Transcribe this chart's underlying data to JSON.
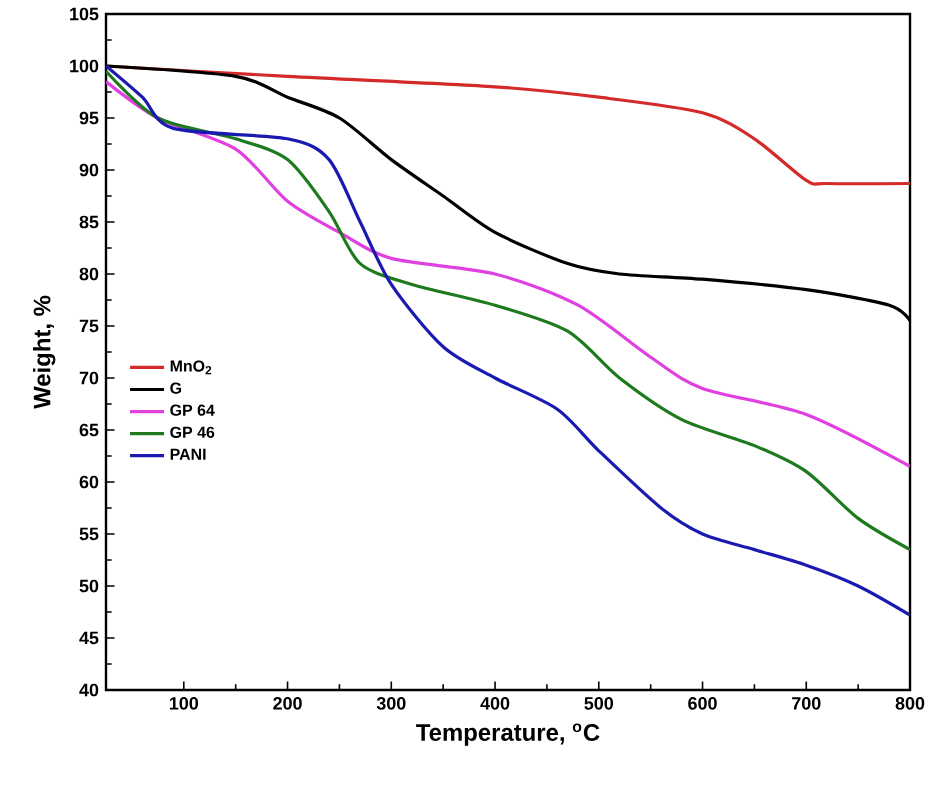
{
  "chart_data": {
    "type": "line",
    "xlabel": "Temperature, $^{o}$C",
    "ylabel": "Weight, %",
    "xlim": [
      25,
      800
    ],
    "xticks": [
      100,
      200,
      300,
      400,
      500,
      600,
      700,
      800
    ],
    "ylim": [
      40,
      105
    ],
    "yticks": [
      40,
      45,
      50,
      55,
      60,
      65,
      70,
      75,
      80,
      85,
      90,
      95,
      100,
      105
    ],
    "legend": "left",
    "series": [
      {
        "name": "MnO$_{2}$",
        "color": "#d42a2a",
        "x": [
          25,
          200,
          400,
          500,
          600,
          650,
          700,
          720,
          800
        ],
        "values": [
          100,
          99,
          98,
          97,
          95.5,
          93,
          89,
          88.7,
          88.7
        ]
      },
      {
        "name": "G",
        "color": "#000000",
        "x": [
          25,
          150,
          200,
          250,
          300,
          350,
          400,
          470,
          520,
          600,
          700,
          780,
          800
        ],
        "values": [
          100,
          99,
          97,
          95,
          91,
          87.5,
          84,
          81,
          80,
          79.5,
          78.5,
          77,
          75.5
        ]
      },
      {
        "name": "GP 64",
        "color": "#e040e0",
        "x": [
          25,
          75,
          150,
          200,
          250,
          300,
          400,
          480,
          550,
          600,
          700,
          800
        ],
        "values": [
          98.5,
          95,
          92,
          87,
          84,
          81.5,
          80,
          77,
          72,
          69,
          66.5,
          61.5
        ]
      },
      {
        "name": "GP 46",
        "color": "#1e7a1e",
        "x": [
          25,
          75,
          150,
          200,
          240,
          270,
          320,
          400,
          470,
          520,
          580,
          650,
          700,
          750,
          800
        ],
        "values": [
          99.5,
          95,
          93,
          91,
          86,
          81,
          79,
          77,
          74.5,
          70,
          66,
          63.5,
          61,
          56.5,
          53.5
        ]
      },
      {
        "name": "PANI",
        "color": "#1a1ab0",
        "x": [
          25,
          60,
          90,
          200,
          240,
          270,
          300,
          350,
          400,
          460,
          500,
          560,
          600,
          650,
          700,
          750,
          800
        ],
        "values": [
          100,
          97,
          94,
          93,
          91,
          85,
          79,
          73,
          70,
          67,
          63,
          57.5,
          55,
          53.5,
          52,
          50,
          47.2
        ]
      }
    ]
  }
}
